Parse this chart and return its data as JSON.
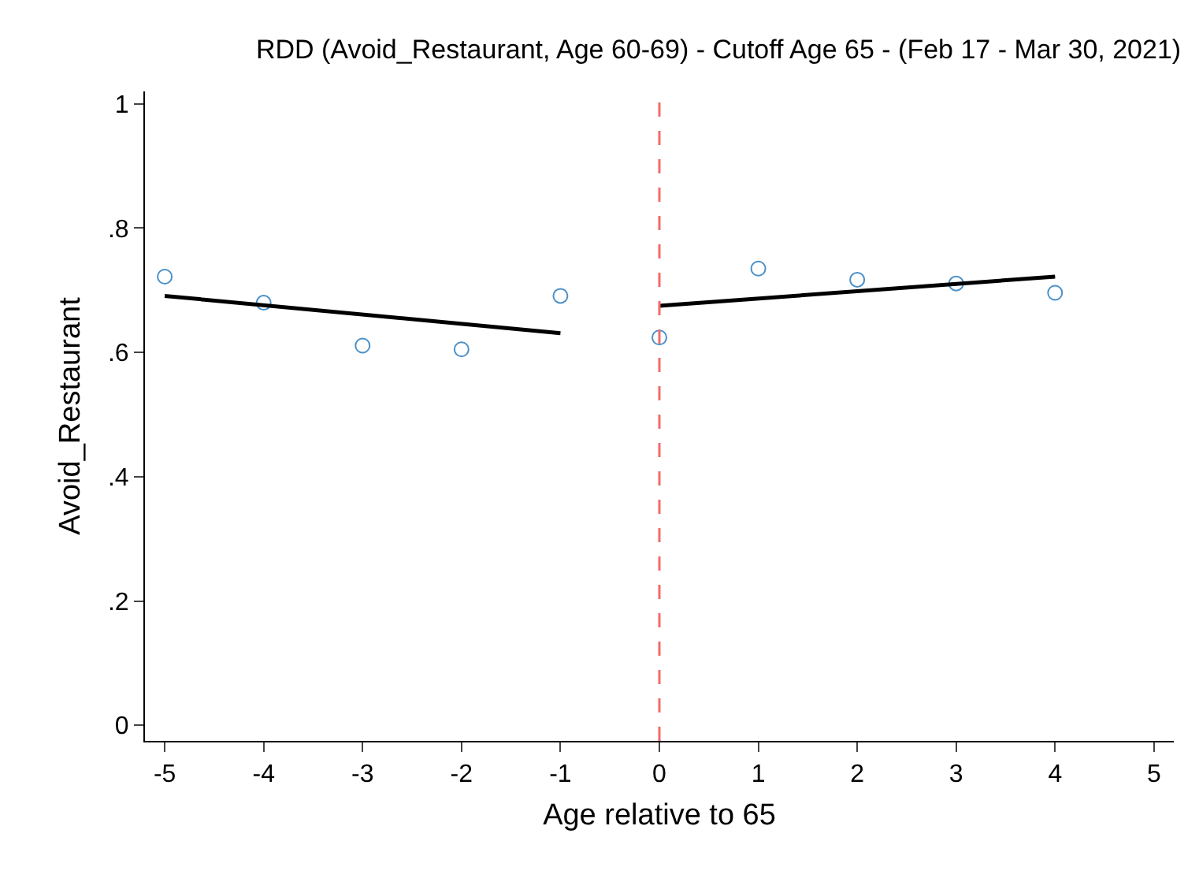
{
  "chart_data": {
    "type": "scatter",
    "title": "RDD (Avoid_Restaurant, Age 60-69) - Cutoff Age 65 - (Feb 17 - Mar 30, 2021)",
    "xlabel": "Age relative to 65",
    "ylabel": "Avoid_Restaurant",
    "x": [
      -5,
      -4,
      -3,
      -2,
      -1,
      0,
      1,
      2,
      3,
      4
    ],
    "series": [
      {
        "type": "scatter",
        "color": "#4a90c8",
        "marker": "circle",
        "values": [
          0.722,
          0.68,
          0.611,
          0.605,
          0.691,
          0.624,
          0.735,
          0.717,
          0.711,
          0.696
        ]
      },
      {
        "type": "line",
        "color": "#000000",
        "marker": "none",
        "line_style": "solid",
        "x": [
          -5,
          -1
        ],
        "values": [
          0.691,
          0.631
        ]
      },
      {
        "type": "line",
        "color": "#000000",
        "marker": "none",
        "line_style": "solid",
        "x": [
          0,
          4
        ],
        "values": [
          0.675,
          0.722
        ]
      }
    ],
    "xlim": [
      -5.2,
      5.2
    ],
    "ylim": [
      -0.025,
      1.02
    ],
    "xticks": [
      -5,
      -4,
      -3,
      -2,
      -1,
      0,
      1,
      2,
      3,
      4,
      5
    ],
    "yticks": [
      0,
      {
        "value": 0.2,
        "label": ".2"
      },
      {
        "value": 0.4,
        "label": ".4"
      },
      {
        "value": 0.6,
        "label": ".6"
      },
      {
        "value": 0.8,
        "label": ".8"
      },
      1
    ],
    "ref_lines": [
      {
        "axis": "x",
        "value": 0,
        "color": "#f26b6b",
        "line_style": "dashed"
      }
    ],
    "grid": false
  }
}
